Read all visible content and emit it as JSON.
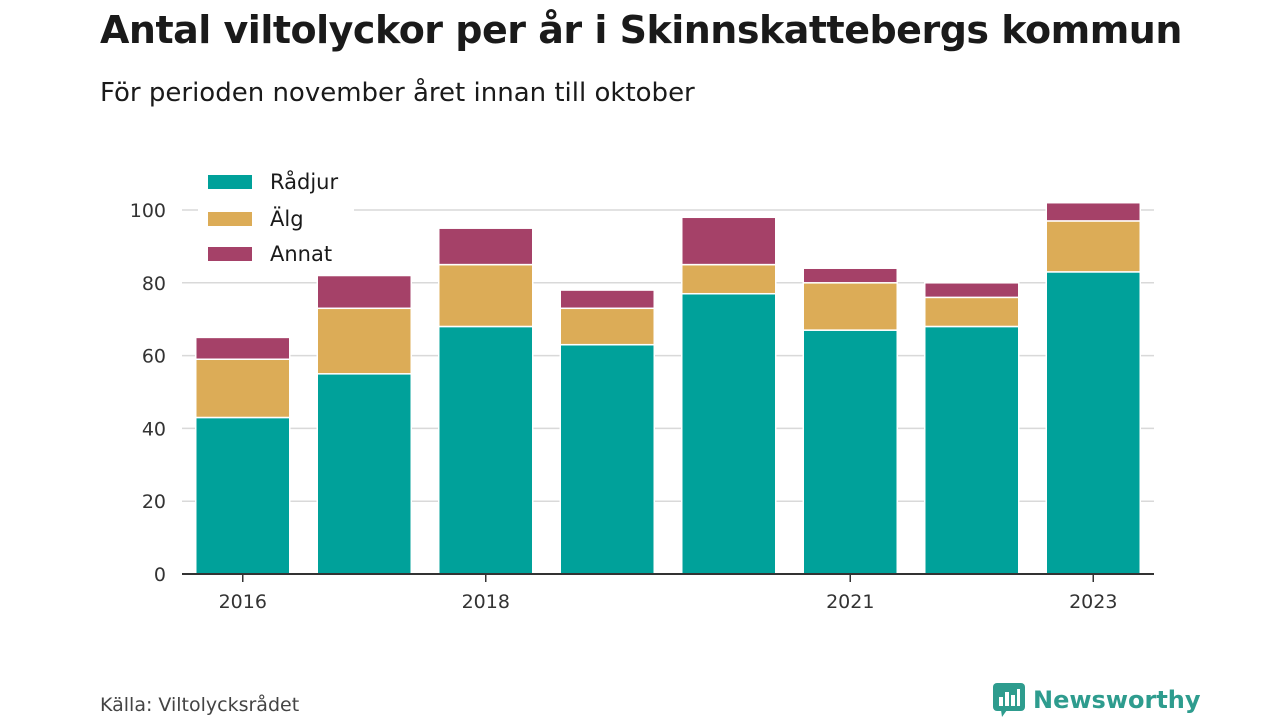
{
  "title": "Antal viltolyckor per år i Skinnskattebergs kommun",
  "subtitle": "För perioden november året innan till oktober",
  "source": "Källa: Viltolycksrådet",
  "brand": {
    "name": "Newsworthy",
    "icon": "newsworthy-logo-icon",
    "color": "#2e9c8e"
  },
  "chart_data": {
    "type": "bar",
    "stacked": true,
    "categories": [
      "2016",
      "2017",
      "2018",
      "2019",
      "2020",
      "2021",
      "2022",
      "2023"
    ],
    "x_tick_labels": [
      "2016",
      "",
      "2018",
      "",
      "",
      "2021",
      "",
      "2023"
    ],
    "series": [
      {
        "name": "Rådjur",
        "color": "#00a19a",
        "values": [
          43,
          55,
          68,
          63,
          77,
          67,
          68,
          83
        ]
      },
      {
        "name": "Älg",
        "color": "#dcac57",
        "values": [
          16,
          18,
          17,
          10,
          8,
          13,
          8,
          14
        ]
      },
      {
        "name": "Annat",
        "color": "#a54168",
        "values": [
          6,
          9,
          10,
          5,
          13,
          4,
          4,
          5
        ]
      }
    ],
    "ylim": [
      0,
      100
    ],
    "yticks": [
      0,
      20,
      40,
      60,
      80,
      100
    ],
    "grid": true,
    "legend": "top-left",
    "xlabel": "",
    "ylabel": ""
  }
}
